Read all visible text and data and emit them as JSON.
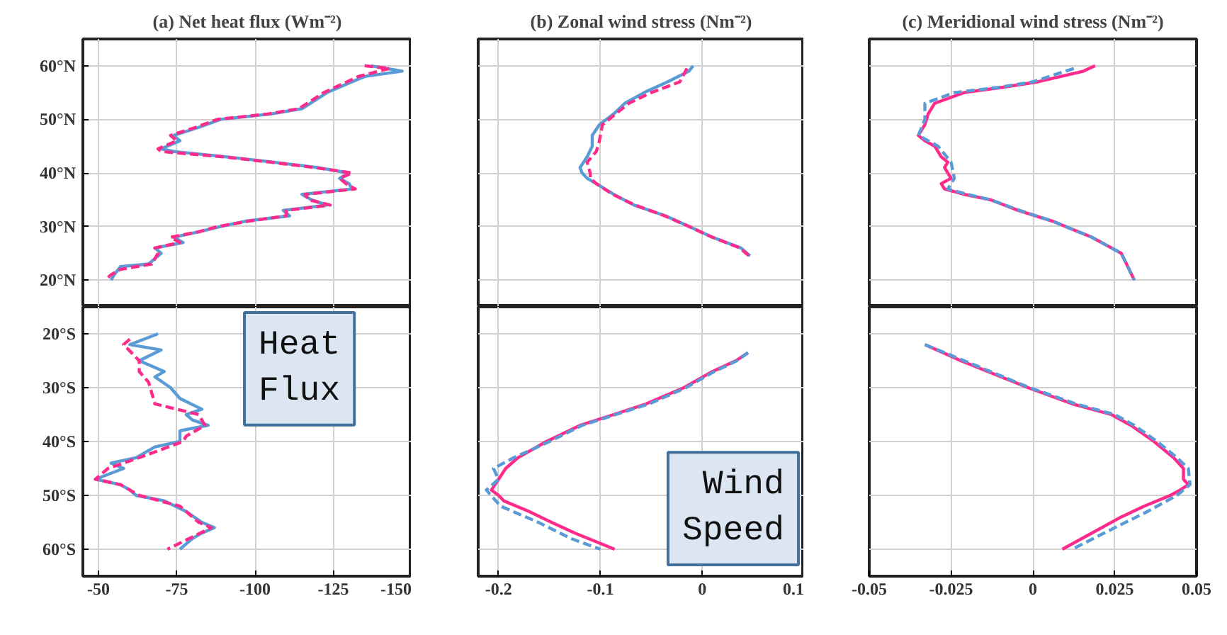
{
  "chart_data": [
    {
      "type": "line",
      "orientation": "horizontal",
      "title": "(a) Net heat flux (Wm⁻²)",
      "xlim": [
        -45,
        -150
      ],
      "xticks": [
        -50,
        -75,
        -100,
        -125,
        -150
      ],
      "ylim": [
        15,
        65
      ],
      "yticks": [
        {
          "value": 20,
          "label": "20°N"
        },
        {
          "value": 30,
          "label": "30°N"
        },
        {
          "value": 40,
          "label": "40°N"
        },
        {
          "value": 50,
          "label": "50°N"
        },
        {
          "value": 60,
          "label": "60°N"
        }
      ],
      "grid": true,
      "tick_labels": "y",
      "series": [
        {
          "color": "#5b9bd5",
          "line_style": "solid",
          "x": [
            60,
            59,
            58,
            55,
            52,
            51,
            50,
            48.5,
            47,
            46,
            44.5,
            44,
            43,
            42,
            41,
            40,
            39,
            38,
            37,
            36,
            35,
            34,
            33,
            32,
            31,
            30,
            29,
            28,
            27,
            26,
            25,
            23,
            22.5,
            21,
            20
          ],
          "values": [
            -137,
            -147,
            -135,
            -123,
            -115,
            -105,
            -89,
            -82,
            -74,
            -76,
            -70,
            -74,
            -91,
            -106,
            -120,
            -130,
            -127,
            -130,
            -131,
            -115,
            -118,
            -123,
            -109,
            -111,
            -97,
            -89,
            -82,
            -74,
            -77,
            -68,
            -70,
            -66,
            -57,
            -55,
            -54
          ]
        },
        {
          "color": "#ff2a8a",
          "line_style": "dashed",
          "x": [
            60,
            59.5,
            58,
            55,
            52,
            51,
            50,
            48.5,
            47,
            46,
            44.5,
            44,
            43,
            42,
            41,
            40,
            39,
            38,
            37,
            36,
            35,
            34,
            33,
            32,
            31,
            30,
            29,
            28,
            27,
            26,
            25,
            23,
            22,
            21,
            20.5
          ],
          "values": [
            -135,
            -143,
            -133,
            -122,
            -114,
            -104,
            -88,
            -81,
            -73,
            -75,
            -69,
            -70,
            -90,
            -105,
            -119,
            -131,
            -127,
            -129,
            -132,
            -116,
            -117,
            -124,
            -110,
            -110,
            -98,
            -88,
            -82,
            -73,
            -76,
            -68,
            -69,
            -67,
            -57,
            -54,
            -53
          ]
        }
      ]
    },
    {
      "type": "line",
      "orientation": "horizontal",
      "xlim": [
        -45,
        -150
      ],
      "xticks": [
        -50,
        -75,
        -100,
        -125,
        -150
      ],
      "ylim": [
        -65,
        -15
      ],
      "yticks": [
        {
          "value": -20,
          "label": "20°S"
        },
        {
          "value": -30,
          "label": "30°S"
        },
        {
          "value": -40,
          "label": "40°S"
        },
        {
          "value": -50,
          "label": "50°S"
        },
        {
          "value": -60,
          "label": "60°S"
        }
      ],
      "grid": true,
      "annotations": [
        "Heat Flux"
      ],
      "series": [
        {
          "color": "#5b9bd5",
          "line_style": "solid",
          "x": [
            -20,
            -22,
            -23,
            -25,
            -27,
            -28,
            -30,
            -32,
            -34,
            -35,
            -36,
            -37,
            -38,
            -40,
            -41,
            -43,
            -44,
            -45,
            -47,
            -48,
            -49,
            -50,
            -51,
            -53,
            -55,
            -56,
            -57,
            -58,
            -59,
            -60
          ],
          "values": [
            -69,
            -60,
            -70,
            -63,
            -71,
            -68,
            -73,
            -76,
            -83,
            -78,
            -80,
            -85,
            -76,
            -76,
            -68,
            -62,
            -54,
            -58,
            -49,
            -57,
            -60,
            -62,
            -71,
            -78,
            -83,
            -87,
            -83,
            -80,
            -78,
            -76
          ]
        },
        {
          "color": "#ff2a8a",
          "line_style": "dashed",
          "x": [
            -21,
            -22,
            -25,
            -27,
            -29,
            -31,
            -33,
            -35,
            -37,
            -39,
            -40,
            -43,
            -45,
            -47,
            -48,
            -50,
            -52,
            -55,
            -56,
            -58,
            -60
          ],
          "values": [
            -60,
            -58,
            -63,
            -63,
            -66,
            -67,
            -68,
            -82,
            -84,
            -78,
            -77,
            -63,
            -53,
            -49,
            -57,
            -63,
            -76,
            -82,
            -86,
            -79,
            -72
          ]
        }
      ]
    },
    {
      "type": "line",
      "orientation": "horizontal",
      "title": "(b) Zonal wind stress (Nm⁻²)",
      "xlim": [
        -0.22,
        0.1
      ],
      "xticks": [
        -0.2,
        -0.1,
        0,
        0.1
      ],
      "ylim": [
        15,
        65
      ],
      "yticks": [
        {
          "value": 20,
          "label": null
        },
        {
          "value": 30,
          "label": null
        },
        {
          "value": 40,
          "label": null
        },
        {
          "value": 50,
          "label": null
        },
        {
          "value": 60,
          "label": null
        }
      ],
      "grid": true,
      "tick_labels": false,
      "series": [
        {
          "color": "#5b9bd5",
          "line_style": "solid",
          "x": [
            60,
            59,
            57,
            55,
            53,
            51,
            49,
            47,
            45,
            43,
            41,
            40,
            39,
            38,
            36,
            34,
            32,
            30,
            28,
            26,
            24.5
          ],
          "values": [
            -0.009,
            -0.013,
            -0.034,
            -0.057,
            -0.076,
            -0.087,
            -0.101,
            -0.108,
            -0.108,
            -0.113,
            -0.12,
            -0.118,
            -0.113,
            -0.104,
            -0.087,
            -0.067,
            -0.036,
            -0.013,
            0.01,
            0.038,
            0.047
          ]
        },
        {
          "color": "#ff2a8a",
          "line_style": "dashed",
          "x": [
            59.5,
            57,
            55,
            53,
            51,
            49,
            46,
            44,
            42,
            40,
            39,
            38,
            36,
            34,
            32,
            30,
            28,
            26,
            24.5
          ],
          "values": [
            -0.015,
            -0.022,
            -0.05,
            -0.072,
            -0.085,
            -0.098,
            -0.101,
            -0.104,
            -0.113,
            -0.11,
            -0.11,
            -0.104,
            -0.088,
            -0.066,
            -0.037,
            -0.013,
            0.01,
            0.037,
            0.046
          ]
        }
      ]
    },
    {
      "type": "line",
      "orientation": "horizontal",
      "xlim": [
        -0.22,
        0.1
      ],
      "xticks": [
        -0.2,
        -0.1,
        0,
        0.1
      ],
      "ylim": [
        -65,
        -15
      ],
      "yticks": [
        {
          "value": -20,
          "label": null
        },
        {
          "value": -30,
          "label": null
        },
        {
          "value": -40,
          "label": null
        },
        {
          "value": -50,
          "label": null
        },
        {
          "value": -60,
          "label": null
        }
      ],
      "grid": true,
      "tick_labels": "x",
      "annotations": [
        "Wind Speed"
      ],
      "series": [
        {
          "color": "#5b9bd5",
          "line_style": "dashed",
          "x": [
            -23.5,
            -25,
            -27,
            -30,
            -33,
            -35,
            -37,
            -40,
            -43,
            -45,
            -47,
            -49,
            -52,
            -55,
            -58,
            -60
          ],
          "values": [
            0.045,
            0.034,
            0.012,
            -0.016,
            -0.052,
            -0.085,
            -0.118,
            -0.15,
            -0.185,
            -0.205,
            -0.2,
            -0.212,
            -0.198,
            -0.161,
            -0.129,
            -0.1
          ]
        },
        {
          "color": "#ff2a8a",
          "line_style": "solid",
          "x": [
            -23.5,
            -25,
            -27,
            -30,
            -33,
            -35,
            -37,
            -40,
            -43,
            -45,
            -47,
            -49,
            -50,
            -51,
            -53,
            -55,
            -57,
            -60
          ],
          "values": [
            0.045,
            0.033,
            0.01,
            -0.018,
            -0.055,
            -0.087,
            -0.12,
            -0.153,
            -0.181,
            -0.193,
            -0.2,
            -0.207,
            -0.2,
            -0.195,
            -0.17,
            -0.148,
            -0.125,
            -0.086
          ]
        }
      ]
    },
    {
      "type": "line",
      "orientation": "horizontal",
      "title": "(c) Meridional wind stress (Nm⁻²)",
      "xlim": [
        -0.05,
        0.05
      ],
      "xticks": [
        -0.05,
        -0.025,
        0,
        0.025,
        0.05
      ],
      "ylim": [
        15,
        65
      ],
      "yticks": [
        {
          "value": 20,
          "label": null
        },
        {
          "value": 30,
          "label": null
        },
        {
          "value": 40,
          "label": null
        },
        {
          "value": 50,
          "label": null
        },
        {
          "value": 60,
          "label": null
        }
      ],
      "grid": true,
      "tick_labels": false,
      "series": [
        {
          "color": "#5b9bd5",
          "line_style": "dashed",
          "x": [
            59.5,
            57,
            56,
            55,
            53,
            50,
            47,
            45,
            42,
            39,
            37,
            36,
            35,
            33,
            31,
            28,
            25,
            20
          ],
          "values": [
            0.0125,
            0,
            -0.01,
            -0.024,
            -0.033,
            -0.033,
            -0.035,
            -0.029,
            -0.025,
            -0.024,
            -0.026,
            -0.02,
            -0.013,
            -0.004,
            0.006,
            0.018,
            0.027,
            0.031
          ]
        },
        {
          "color": "#ff2a8a",
          "line_style": "solid",
          "x": [
            60,
            59,
            57,
            56,
            55,
            53,
            51,
            49,
            47,
            46,
            45,
            43,
            42,
            41,
            39,
            38,
            37,
            36,
            35,
            33,
            31,
            28,
            25,
            20
          ],
          "values": [
            0.019,
            0.0155,
            0.0015,
            -0.009,
            -0.021,
            -0.03,
            -0.032,
            -0.033,
            -0.035,
            -0.033,
            -0.03,
            -0.028,
            -0.026,
            -0.027,
            -0.025,
            -0.028,
            -0.027,
            -0.021,
            -0.013,
            -0.0045,
            0.006,
            0.018,
            0.027,
            0.031
          ]
        }
      ]
    },
    {
      "type": "line",
      "orientation": "horizontal",
      "xlim": [
        -0.05,
        0.05
      ],
      "xticks": [
        -0.05,
        -0.025,
        0,
        0.025,
        0.05
      ],
      "ylim": [
        -65,
        -15
      ],
      "yticks": [
        {
          "value": -20,
          "label": null
        },
        {
          "value": -30,
          "label": null
        },
        {
          "value": -40,
          "label": null
        },
        {
          "value": -50,
          "label": null
        },
        {
          "value": -60,
          "label": null
        }
      ],
      "grid": true,
      "tick_labels": "x",
      "series": [
        {
          "color": "#5b9bd5",
          "line_style": "dashed",
          "x": [
            -22,
            -25,
            -30,
            -33,
            -35,
            -37,
            -40,
            -43,
            -45,
            -48,
            -50,
            -53,
            -56,
            -60
          ],
          "values": [
            -0.033,
            -0.021,
            -0.001,
            0.013,
            0.025,
            0.031,
            0.038,
            0.044,
            0.0475,
            0.048,
            0.044,
            0.035,
            0.025,
            0.012
          ]
        },
        {
          "color": "#ff2a8a",
          "line_style": "solid",
          "x": [
            -22,
            -25,
            -30,
            -33,
            -35,
            -37,
            -40,
            -43,
            -45,
            -47,
            -48,
            -49,
            -50,
            -52,
            -54,
            -57,
            -60
          ],
          "values": [
            -0.033,
            -0.022,
            -0.0015,
            0.012,
            0.024,
            0.03,
            0.037,
            0.043,
            0.046,
            0.046,
            0.0475,
            0.045,
            0.042,
            0.034,
            0.027,
            0.018,
            0.009
          ]
        }
      ]
    }
  ]
}
